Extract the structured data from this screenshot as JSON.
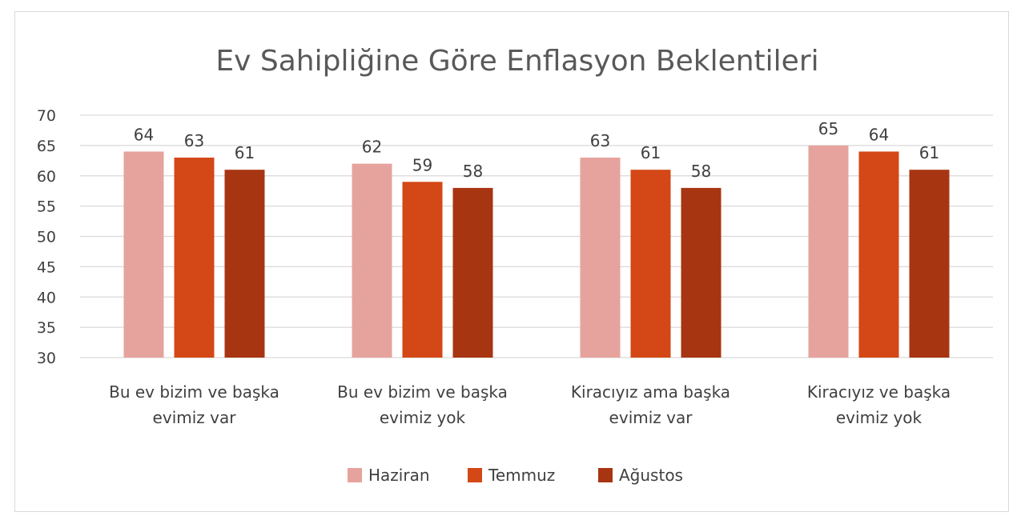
{
  "chart_data": {
    "type": "bar",
    "title": "Ev Sahipliğine Göre Enflasyon Beklentileri",
    "categories": [
      [
        "Bu ev bizim ve başka",
        "evimiz var"
      ],
      [
        "Bu ev bizim ve başka",
        "evimiz yok"
      ],
      [
        "Kiracıyız ama başka",
        "evimiz var"
      ],
      [
        "Kiracıyız ve başka",
        "evimiz yok"
      ]
    ],
    "series": [
      {
        "name": "Haziran",
        "color": "#e6a39d",
        "values": [
          64,
          62,
          63,
          65
        ]
      },
      {
        "name": "Temmuz",
        "color": "#d44716",
        "values": [
          63,
          59,
          61,
          64
        ]
      },
      {
        "name": "Ağustos",
        "color": "#a83512",
        "values": [
          61,
          58,
          58,
          61
        ]
      }
    ],
    "data_labels": [
      [
        "64",
        "62",
        "63",
        "65"
      ],
      [
        "63",
        "59",
        "61",
        "64"
      ],
      [
        "61",
        "58",
        "58",
        "61"
      ]
    ],
    "ylim": [
      30,
      70
    ],
    "yticks": [
      "30",
      "35",
      "40",
      "45",
      "50",
      "55",
      "60",
      "65",
      "70"
    ],
    "grid": true,
    "legend_position": "bottom"
  }
}
